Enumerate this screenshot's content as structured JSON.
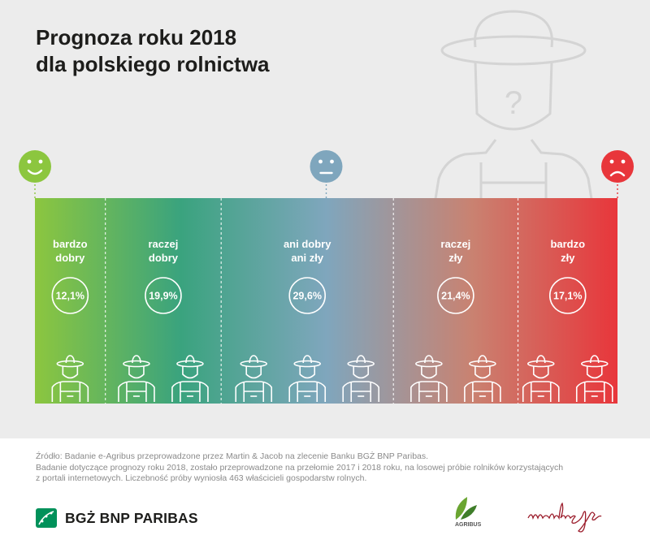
{
  "title": "Prognoza roku 2018\ndla polskiego rolnictwa",
  "chart_data": {
    "type": "bar",
    "title": "Prognoza roku 2018 dla polskiego rolnictwa",
    "categories": [
      "bardzo\ndobry",
      "raczej\ndobry",
      "ani dobry\nani zły",
      "raczej\nzły",
      "bardzo\nzły"
    ],
    "values": [
      12.1,
      19.9,
      29.6,
      21.4,
      17.1
    ],
    "value_labels": [
      "12,1%",
      "19,9%",
      "29,6%",
      "21,4%",
      "17,1%"
    ],
    "unit": "%",
    "layout": "stacked horizontal band, segment width proportional to share",
    "gradient_colors": [
      "#8cc63f",
      "#3aa37e",
      "#7fa6bd",
      "#c98271",
      "#e8363b"
    ],
    "scale_faces": [
      {
        "mood": "happy-face-icon",
        "color": "#8cc63f"
      },
      {
        "mood": "neutral-face-icon",
        "color": "#7fa6bd"
      },
      {
        "mood": "sad-face-icon",
        "color": "#e8363b"
      }
    ]
  },
  "source": "Źródło: Badanie e-Agribus przeprowadzone przez Martin & Jacob na zlecenie Banku BGŻ BNP Paribas.\nBadanie dotyczące prognozy roku 2018, zostało przeprowadzone na przełomie 2017 i 2018 roku, na losowej próbie rolników korzystających\nz portali internetowych.  Liczebność próby wyniosła 463 właścicieli gospodarstw rolnych.",
  "logos": {
    "bank": "BGŻ BNP PARIBAS",
    "agribus": "AGRIBUS",
    "martin_jacob": "martin&jacob"
  }
}
